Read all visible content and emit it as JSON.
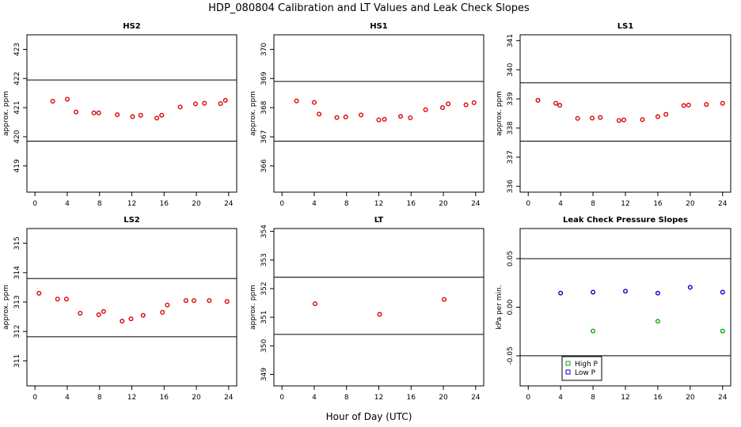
{
  "figure": {
    "title": "HDP_080804  Calibration and LT Values and Leak Check Slopes",
    "xlabel": "Hour of Day (UTC)"
  },
  "colors": {
    "marker": "#dd0000",
    "high_p": "#00aa00",
    "low_p": "#0000cc",
    "line": "#000000"
  },
  "chart_data": [
    {
      "type": "scatter",
      "title": "HS2",
      "ylabel": "approx. ppm",
      "xlim": [
        -1,
        25
      ],
      "ylim": [
        418.1,
        423.5
      ],
      "xticks": [
        0,
        4,
        8,
        12,
        16,
        20,
        24
      ],
      "yticks": [
        419,
        420,
        421,
        422,
        423
      ],
      "hlines": [
        421.95,
        419.85
      ],
      "series": [
        {
          "x": [
            2.2,
            4.0,
            5.1,
            7.3,
            7.9,
            10.2,
            12.1,
            13.1,
            15.1,
            15.7,
            18.0,
            19.9,
            21.0,
            23.0,
            23.6
          ],
          "y": [
            421.22,
            421.29,
            420.85,
            420.82,
            420.82,
            420.76,
            420.69,
            420.74,
            420.64,
            420.74,
            421.02,
            421.13,
            421.15,
            421.14,
            421.25
          ]
        }
      ]
    },
    {
      "type": "scatter",
      "title": "HS1",
      "ylabel": "approx. ppm",
      "xlim": [
        -1,
        25
      ],
      "ylim": [
        365.1,
        370.5
      ],
      "xticks": [
        0,
        4,
        8,
        12,
        16,
        20,
        24
      ],
      "yticks": [
        366,
        367,
        368,
        369,
        370
      ],
      "hlines": [
        368.9,
        366.85
      ],
      "series": [
        {
          "x": [
            1.8,
            4.0,
            4.6,
            6.8,
            7.9,
            9.8,
            12.0,
            12.7,
            14.7,
            15.9,
            17.8,
            19.9,
            20.6,
            22.8,
            23.8
          ],
          "y": [
            368.23,
            368.18,
            367.78,
            367.66,
            367.68,
            367.75,
            367.58,
            367.6,
            367.7,
            367.65,
            367.93,
            368.0,
            368.13,
            368.1,
            368.17
          ]
        }
      ]
    },
    {
      "type": "scatter",
      "title": "LS1",
      "ylabel": "approx. ppm",
      "xlim": [
        -1,
        25
      ],
      "ylim": [
        335.8,
        341.2
      ],
      "xticks": [
        0,
        4,
        8,
        12,
        16,
        20,
        24
      ],
      "yticks": [
        336,
        337,
        338,
        339,
        340,
        341
      ],
      "hlines": [
        339.55,
        337.55
      ],
      "series": [
        {
          "x": [
            1.2,
            3.4,
            3.9,
            6.1,
            7.9,
            8.9,
            11.2,
            11.8,
            14.1,
            16.0,
            17.0,
            19.2,
            19.8,
            22.0,
            24.0
          ],
          "y": [
            338.95,
            338.85,
            338.78,
            338.33,
            338.34,
            338.36,
            338.26,
            338.28,
            338.29,
            338.39,
            338.47,
            338.77,
            338.79,
            338.81,
            338.85
          ]
        }
      ]
    },
    {
      "type": "scatter",
      "title": "LS2",
      "ylabel": "approx. ppm",
      "xlim": [
        -1,
        25
      ],
      "ylim": [
        310.15,
        315.5
      ],
      "xticks": [
        0,
        4,
        8,
        12,
        16,
        20,
        24
      ],
      "yticks": [
        311,
        312,
        313,
        314,
        315
      ],
      "hlines": [
        313.8,
        311.82
      ],
      "series": [
        {
          "x": [
            0.5,
            2.8,
            3.9,
            5.6,
            7.9,
            8.5,
            10.8,
            11.9,
            13.4,
            15.8,
            16.4,
            18.7,
            19.7,
            21.6,
            23.8
          ],
          "y": [
            313.3,
            313.1,
            313.1,
            312.62,
            312.57,
            312.68,
            312.35,
            312.43,
            312.55,
            312.65,
            312.9,
            313.05,
            313.05,
            313.05,
            313.02
          ]
        }
      ]
    },
    {
      "type": "scatter",
      "title": "LT",
      "ylabel": "approx. ppm",
      "xlim": [
        -1,
        25
      ],
      "ylim": [
        348.6,
        354.1
      ],
      "xticks": [
        0,
        4,
        8,
        12,
        16,
        20,
        24
      ],
      "yticks": [
        349,
        350,
        351,
        352,
        353,
        354
      ],
      "hlines": [
        352.4,
        350.4
      ],
      "series": [
        {
          "x": [
            4.1,
            12.1,
            20.1
          ],
          "y": [
            351.47,
            351.1,
            351.62
          ]
        }
      ]
    },
    {
      "type": "scatter",
      "title": "Leak Check Pressure Slopes",
      "ylabel": "kPa per min.",
      "xlim": [
        -1,
        25
      ],
      "ylim": [
        -0.081,
        0.081
      ],
      "xticks": [
        0,
        4,
        8,
        12,
        16,
        20,
        24
      ],
      "yticks": [
        -0.05,
        0.0,
        0.05
      ],
      "ytick_labels": [
        "-0.05",
        "0.00",
        "0.05"
      ],
      "hlines": [
        0.05,
        -0.05
      ],
      "legend": "bottom-left",
      "series": [
        {
          "name": "High P",
          "x": [
            8.0,
            16.0,
            24.0
          ],
          "y": [
            -0.0245,
            -0.0145,
            -0.0245
          ]
        },
        {
          "name": "Low P",
          "x": [
            4.0,
            8.0,
            12.0,
            16.0,
            20.0,
            24.0
          ],
          "y": [
            0.0145,
            0.0155,
            0.0165,
            0.0145,
            0.0205,
            0.0155
          ]
        }
      ]
    }
  ]
}
